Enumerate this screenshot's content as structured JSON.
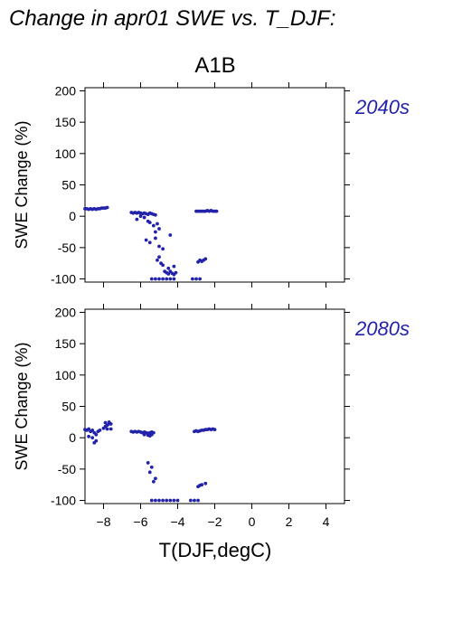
{
  "title": "Change in apr01 SWE vs. T_DJF:",
  "scenario": "A1B",
  "accent_color": "#2222aa",
  "chart_data": [
    {
      "type": "scatter",
      "period_label": "2040s",
      "ylabel": "SWE Change (%)",
      "xlabel": "T(DJF,degC)",
      "xlim": [
        -9,
        5
      ],
      "ylim": [
        -105,
        205
      ],
      "xticks": [
        -8,
        -6,
        -4,
        -2,
        0,
        2,
        4
      ],
      "yticks": [
        -100,
        -50,
        0,
        50,
        100,
        150,
        200
      ],
      "show_xtick_labels": false,
      "series": [
        {
          "color": "#2222aa",
          "points": [
            [
              -9.0,
              12
            ],
            [
              -8.9,
              12
            ],
            [
              -8.8,
              11
            ],
            [
              -8.7,
              12
            ],
            [
              -8.6,
              11
            ],
            [
              -8.5,
              12
            ],
            [
              -8.4,
              11
            ],
            [
              -8.3,
              12
            ],
            [
              -8.2,
              12
            ],
            [
              -8.1,
              13
            ],
            [
              -8.0,
              13
            ],
            [
              -7.9,
              13
            ],
            [
              -7.8,
              14
            ],
            [
              -6.5,
              6
            ],
            [
              -6.4,
              5
            ],
            [
              -6.3,
              6
            ],
            [
              -6.2,
              5
            ],
            [
              -6.1,
              6
            ],
            [
              -6.0,
              5
            ],
            [
              -5.9,
              4
            ],
            [
              -5.8,
              5
            ],
            [
              -5.7,
              4
            ],
            [
              -5.6,
              3
            ],
            [
              -5.5,
              5
            ],
            [
              -5.4,
              4
            ],
            [
              -5.3,
              3
            ],
            [
              -5.2,
              2
            ],
            [
              -6.2,
              -5
            ],
            [
              -6.0,
              0
            ],
            [
              -5.8,
              -2
            ],
            [
              -5.6,
              -8
            ],
            [
              -5.5,
              -10
            ],
            [
              -5.3,
              -15
            ],
            [
              -5.1,
              -12
            ],
            [
              -5.0,
              -20
            ],
            [
              -5.2,
              -25
            ],
            [
              -5.7,
              -38
            ],
            [
              -5.5,
              -42
            ],
            [
              -5.2,
              -35
            ],
            [
              -5.0,
              -48
            ],
            [
              -4.8,
              -52
            ],
            [
              -4.4,
              -30
            ],
            [
              -5.1,
              -70
            ],
            [
              -5.0,
              -65
            ],
            [
              -4.9,
              -75
            ],
            [
              -4.8,
              -78
            ],
            [
              -4.5,
              -83
            ],
            [
              -4.2,
              -80
            ],
            [
              -4.7,
              -88
            ],
            [
              -4.6,
              -90
            ],
            [
              -4.5,
              -92
            ],
            [
              -4.4,
              -88
            ],
            [
              -4.3,
              -91
            ],
            [
              -4.2,
              -93
            ],
            [
              -4.1,
              -90
            ],
            [
              -5.4,
              -100
            ],
            [
              -5.2,
              -100
            ],
            [
              -5.0,
              -100
            ],
            [
              -4.8,
              -100
            ],
            [
              -4.6,
              -100
            ],
            [
              -4.4,
              -100
            ],
            [
              -4.2,
              -100
            ],
            [
              -3.2,
              -100
            ],
            [
              -3.0,
              -100
            ],
            [
              -2.8,
              -100
            ],
            [
              -3.0,
              8
            ],
            [
              -2.9,
              8
            ],
            [
              -2.8,
              8
            ],
            [
              -2.7,
              8
            ],
            [
              -2.6,
              8
            ],
            [
              -2.5,
              8
            ],
            [
              -2.4,
              9
            ],
            [
              -2.3,
              8
            ],
            [
              -2.2,
              9
            ],
            [
              -2.1,
              8
            ],
            [
              -2.0,
              8
            ],
            [
              -1.9,
              8
            ],
            [
              -2.9,
              -73
            ],
            [
              -2.8,
              -70
            ],
            [
              -2.7,
              -72
            ],
            [
              -2.6,
              -70
            ],
            [
              -2.5,
              -68
            ]
          ]
        }
      ]
    },
    {
      "type": "scatter",
      "period_label": "2080s",
      "ylabel": "SWE Change (%)",
      "xlabel": "T(DJF,degC)",
      "xlim": [
        -9,
        5
      ],
      "ylim": [
        -105,
        205
      ],
      "xticks": [
        -8,
        -6,
        -4,
        -2,
        0,
        2,
        4
      ],
      "yticks": [
        -100,
        -50,
        0,
        50,
        100,
        150,
        200
      ],
      "show_xtick_labels": true,
      "series": [
        {
          "color": "#2222aa",
          "points": [
            [
              -9.0,
              13
            ],
            [
              -8.9,
              12
            ],
            [
              -8.8,
              14
            ],
            [
              -8.7,
              10
            ],
            [
              -8.6,
              12
            ],
            [
              -8.5,
              8
            ],
            [
              -8.4,
              5
            ],
            [
              -8.3,
              10
            ],
            [
              -8.2,
              12
            ],
            [
              -8.8,
              2
            ],
            [
              -8.6,
              0
            ],
            [
              -8.5,
              -8
            ],
            [
              -8.4,
              -5
            ],
            [
              -8.0,
              15
            ],
            [
              -7.9,
              18
            ],
            [
              -7.8,
              20
            ],
            [
              -7.7,
              22
            ],
            [
              -7.6,
              22
            ],
            [
              -7.9,
              24
            ],
            [
              -7.7,
              25
            ],
            [
              -7.8,
              14
            ],
            [
              -7.6,
              14
            ],
            [
              -6.5,
              10
            ],
            [
              -6.4,
              9
            ],
            [
              -6.3,
              10
            ],
            [
              -6.2,
              9
            ],
            [
              -6.1,
              10
            ],
            [
              -6.0,
              9
            ],
            [
              -5.9,
              8
            ],
            [
              -5.8,
              9
            ],
            [
              -5.7,
              8
            ],
            [
              -5.6,
              7
            ],
            [
              -5.5,
              8
            ],
            [
              -5.4,
              9
            ],
            [
              -5.3,
              8
            ],
            [
              -5.8,
              5
            ],
            [
              -5.6,
              4
            ],
            [
              -5.5,
              3
            ],
            [
              -5.4,
              5
            ],
            [
              -5.6,
              -40
            ],
            [
              -5.4,
              -47
            ],
            [
              -5.5,
              -55
            ],
            [
              -5.3,
              -70
            ],
            [
              -5.2,
              -65
            ],
            [
              -5.4,
              -100
            ],
            [
              -5.2,
              -100
            ],
            [
              -5.0,
              -100
            ],
            [
              -4.8,
              -100
            ],
            [
              -4.6,
              -100
            ],
            [
              -4.4,
              -100
            ],
            [
              -4.2,
              -100
            ],
            [
              -4.0,
              -100
            ],
            [
              -3.3,
              -100
            ],
            [
              -3.1,
              -100
            ],
            [
              -2.9,
              -100
            ],
            [
              -3.1,
              10
            ],
            [
              -3.0,
              11
            ],
            [
              -2.9,
              10
            ],
            [
              -2.8,
              11
            ],
            [
              -2.7,
              12
            ],
            [
              -2.6,
              12
            ],
            [
              -2.5,
              13
            ],
            [
              -2.4,
              13
            ],
            [
              -2.3,
              14
            ],
            [
              -2.2,
              13
            ],
            [
              -2.1,
              14
            ],
            [
              -2.0,
              13
            ],
            [
              -2.9,
              -78
            ],
            [
              -2.8,
              -76
            ],
            [
              -2.7,
              -75
            ],
            [
              -2.5,
              -73
            ]
          ]
        }
      ]
    }
  ]
}
